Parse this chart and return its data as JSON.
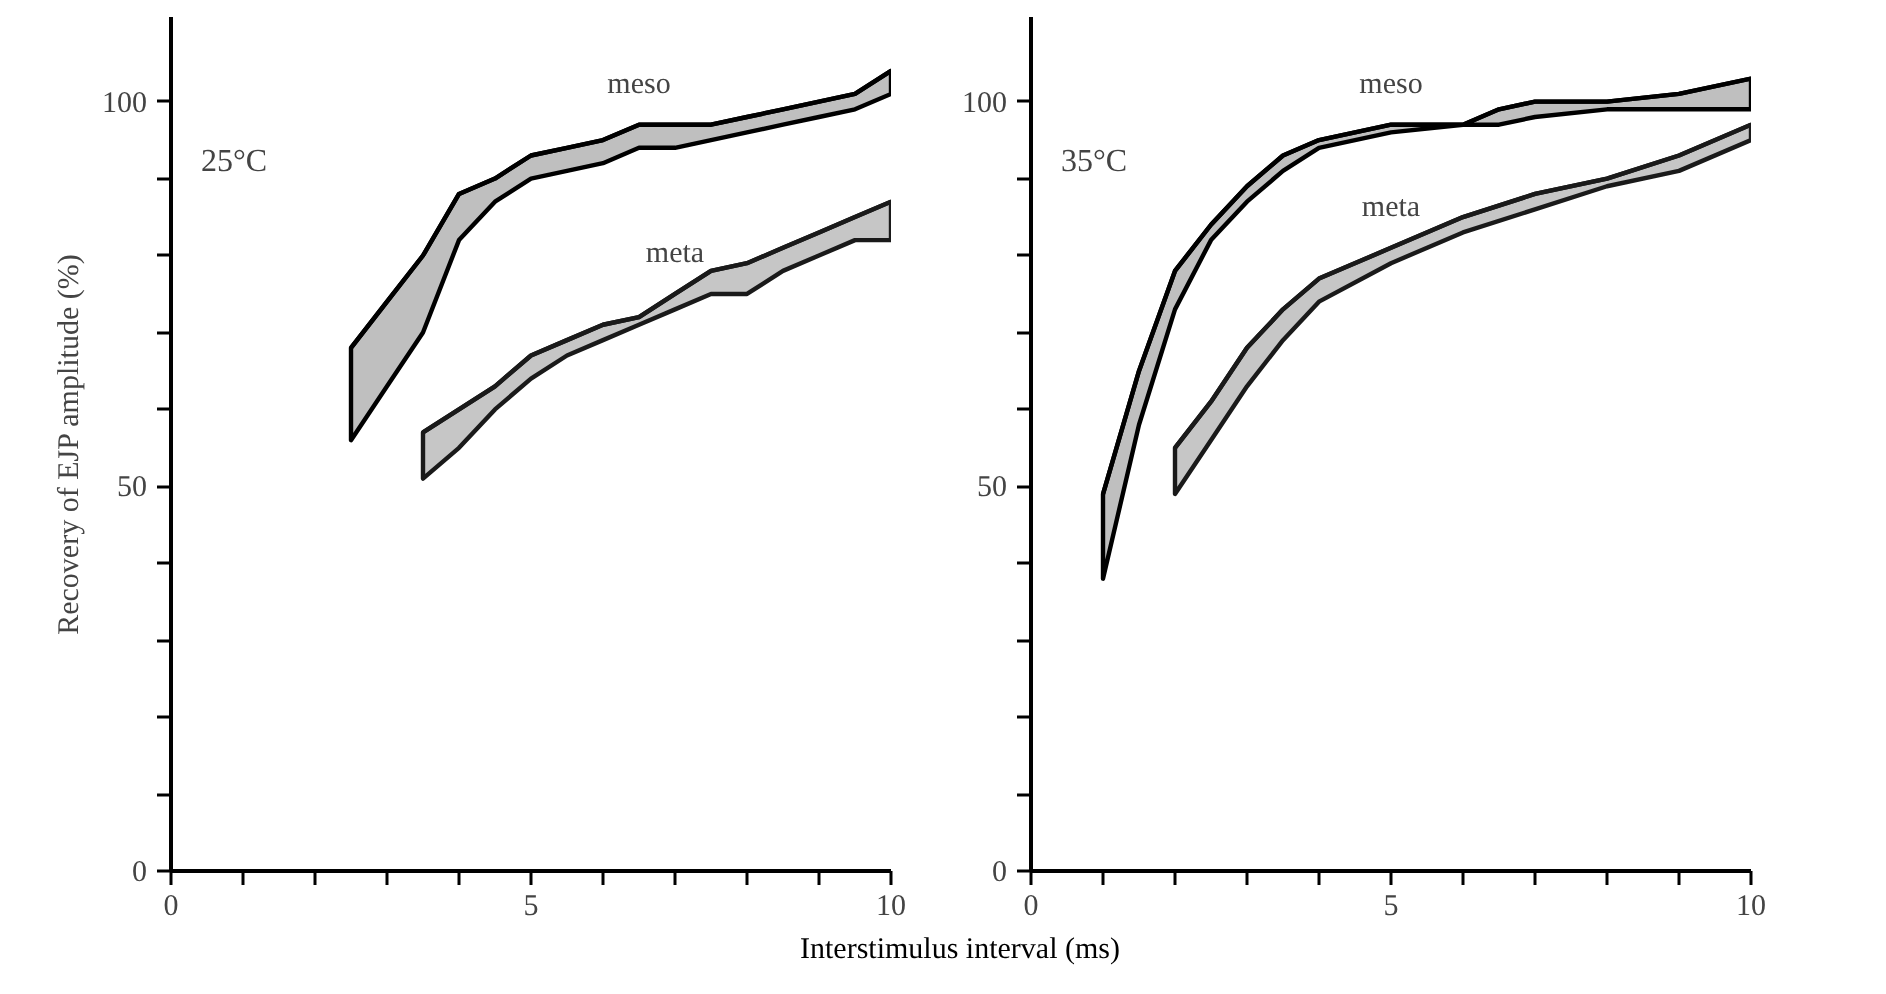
{
  "chart_data": [
    {
      "type": "line",
      "ylabel": "Recovery of EJP amplitude (%)",
      "xlabel": "Interstimulus interval (ms)",
      "annotations": [
        "25°C"
      ],
      "xlim": [
        0,
        10
      ],
      "ylim": [
        0,
        111
      ],
      "xticks": [
        0,
        {
          "value": 1,
          "label": null
        },
        {
          "value": 2,
          "label": null
        },
        {
          "value": 3,
          "label": null
        },
        {
          "value": 4,
          "label": null
        },
        5,
        {
          "value": 6,
          "label": null
        },
        {
          "value": 7,
          "label": null
        },
        {
          "value": 8,
          "label": null
        },
        {
          "value": 9,
          "label": null
        },
        10
      ],
      "yticks": [
        0,
        {
          "value": 10,
          "label": null
        },
        {
          "value": 20,
          "label": null
        },
        {
          "value": 30,
          "label": null
        },
        {
          "value": 40,
          "label": null
        },
        50,
        {
          "value": 60,
          "label": null
        },
        {
          "value": 70,
          "label": null
        },
        {
          "value": 80,
          "label": null
        },
        {
          "value": 90,
          "label": null
        },
        100
      ],
      "grid": false,
      "line_style": "solid",
      "series": [
        {
          "name": "meso",
          "color": "#000000",
          "x": [
            2.5,
            3,
            3.5,
            4,
            4.5,
            5,
            5.5,
            6,
            6.5,
            7,
            7.5,
            8,
            8.5,
            9,
            9.5,
            10
          ],
          "values": [
            68,
            74,
            80,
            88,
            90,
            93,
            94,
            95,
            97,
            97,
            97,
            98,
            99,
            100,
            101,
            104
          ],
          "upper": [
            68,
            74,
            80,
            88,
            90,
            93,
            94,
            95,
            97,
            97,
            97,
            98,
            99,
            100,
            101,
            104
          ],
          "lower": [
            56,
            63,
            70,
            82,
            87,
            90,
            91,
            92,
            94,
            94,
            95,
            96,
            97,
            98,
            99,
            101
          ]
        },
        {
          "name": "meta",
          "color": "#1a1a1a",
          "x": [
            3.5,
            4,
            4.5,
            5,
            5.5,
            6,
            6.5,
            7,
            7.5,
            8,
            8.5,
            9,
            9.5,
            10
          ],
          "values": [
            57,
            60,
            63,
            67,
            69,
            71,
            72,
            75,
            78,
            79,
            81,
            83,
            85,
            87
          ],
          "upper": [
            57,
            60,
            63,
            67,
            69,
            71,
            72,
            75,
            78,
            79,
            81,
            83,
            85,
            87
          ],
          "lower": [
            51,
            55,
            60,
            64,
            67,
            69,
            71,
            73,
            75,
            75,
            78,
            80,
            82,
            82
          ]
        }
      ]
    },
    {
      "type": "line",
      "annotations": [
        "35°C"
      ],
      "xlim": [
        0,
        10
      ],
      "ylim": [
        0,
        111
      ],
      "xticks": [
        0,
        {
          "value": 1,
          "label": null
        },
        {
          "value": 2,
          "label": null
        },
        {
          "value": 3,
          "label": null
        },
        {
          "value": 4,
          "label": null
        },
        5,
        {
          "value": 6,
          "label": null
        },
        {
          "value": 7,
          "label": null
        },
        {
          "value": 8,
          "label": null
        },
        {
          "value": 9,
          "label": null
        },
        10
      ],
      "yticks": [
        0,
        {
          "value": 10,
          "label": null
        },
        {
          "value": 20,
          "label": null
        },
        {
          "value": 30,
          "label": null
        },
        {
          "value": 40,
          "label": null
        },
        50,
        {
          "value": 60,
          "label": null
        },
        {
          "value": 70,
          "label": null
        },
        {
          "value": 80,
          "label": null
        },
        {
          "value": 90,
          "label": null
        },
        100
      ],
      "grid": false,
      "line_style": "solid",
      "series": [
        {
          "name": "meso",
          "color": "#000000",
          "x": [
            1,
            1.5,
            2,
            2.5,
            3,
            3.5,
            4,
            5,
            6,
            6.5,
            7,
            8,
            9,
            10
          ],
          "values": [
            49,
            65,
            78,
            84,
            89,
            93,
            95,
            97,
            97,
            99,
            100,
            100,
            101,
            103
          ],
          "upper": [
            49,
            65,
            78,
            84,
            89,
            93,
            95,
            97,
            97,
            99,
            100,
            100,
            101,
            103
          ],
          "lower": [
            38,
            58,
            73,
            82,
            87,
            91,
            94,
            96,
            97,
            97,
            98,
            99,
            99,
            99
          ]
        },
        {
          "name": "meta",
          "color": "#1a1a1a",
          "x": [
            2,
            2.5,
            3,
            3.5,
            4,
            5,
            6,
            7,
            8,
            9,
            10
          ],
          "values": [
            55,
            61,
            68,
            73,
            77,
            81,
            85,
            88,
            90,
            93,
            97
          ],
          "upper": [
            55,
            61,
            68,
            73,
            77,
            81,
            85,
            88,
            90,
            93,
            97
          ],
          "lower": [
            49,
            56,
            63,
            69,
            74,
            79,
            83,
            86,
            89,
            91,
            95
          ]
        }
      ]
    }
  ]
}
